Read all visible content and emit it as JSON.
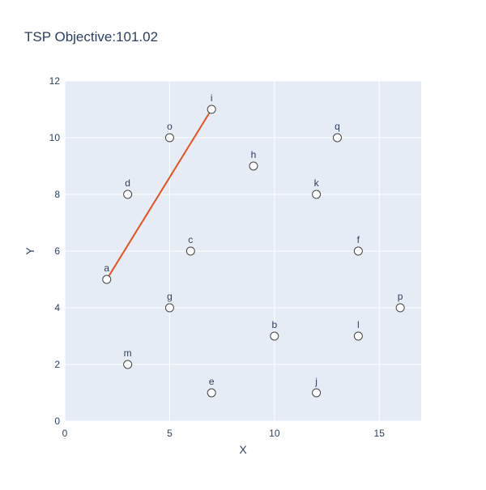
{
  "chart_data": {
    "type": "scatter",
    "title": "TSP Objective:101.02",
    "xlabel": "X",
    "ylabel": "Y",
    "xlim": [
      0,
      17
    ],
    "ylim": [
      0,
      12
    ],
    "x_ticks": [
      0,
      5,
      10,
      15
    ],
    "y_ticks": [
      0,
      2,
      4,
      6,
      8,
      10,
      12
    ],
    "grid": true,
    "legend": "none",
    "points": [
      {
        "label": "a",
        "x": 2,
        "y": 5
      },
      {
        "label": "b",
        "x": 10,
        "y": 3
      },
      {
        "label": "c",
        "x": 6,
        "y": 6
      },
      {
        "label": "d",
        "x": 3,
        "y": 8
      },
      {
        "label": "e",
        "x": 7,
        "y": 1
      },
      {
        "label": "f",
        "x": 14,
        "y": 6
      },
      {
        "label": "g",
        "x": 5,
        "y": 4
      },
      {
        "label": "h",
        "x": 9,
        "y": 9
      },
      {
        "label": "i",
        "x": 7,
        "y": 11
      },
      {
        "label": "j",
        "x": 12,
        "y": 1
      },
      {
        "label": "k",
        "x": 12,
        "y": 8
      },
      {
        "label": "l",
        "x": 14,
        "y": 3
      },
      {
        "label": "m",
        "x": 3,
        "y": 2
      },
      {
        "label": "o",
        "x": 5,
        "y": 10
      },
      {
        "label": "p",
        "x": 16,
        "y": 4
      },
      {
        "label": "q",
        "x": 13,
        "y": 10
      }
    ],
    "route": [
      {
        "x": 2,
        "y": 5
      },
      {
        "x": 7,
        "y": 11
      }
    ],
    "colors": {
      "plot_bg": "#e5ecf6",
      "grid": "#ffffff",
      "route": "#e8501c",
      "marker_fill": "#ffffff",
      "marker_stroke": "#444444",
      "text": "#2a3f5f"
    }
  }
}
